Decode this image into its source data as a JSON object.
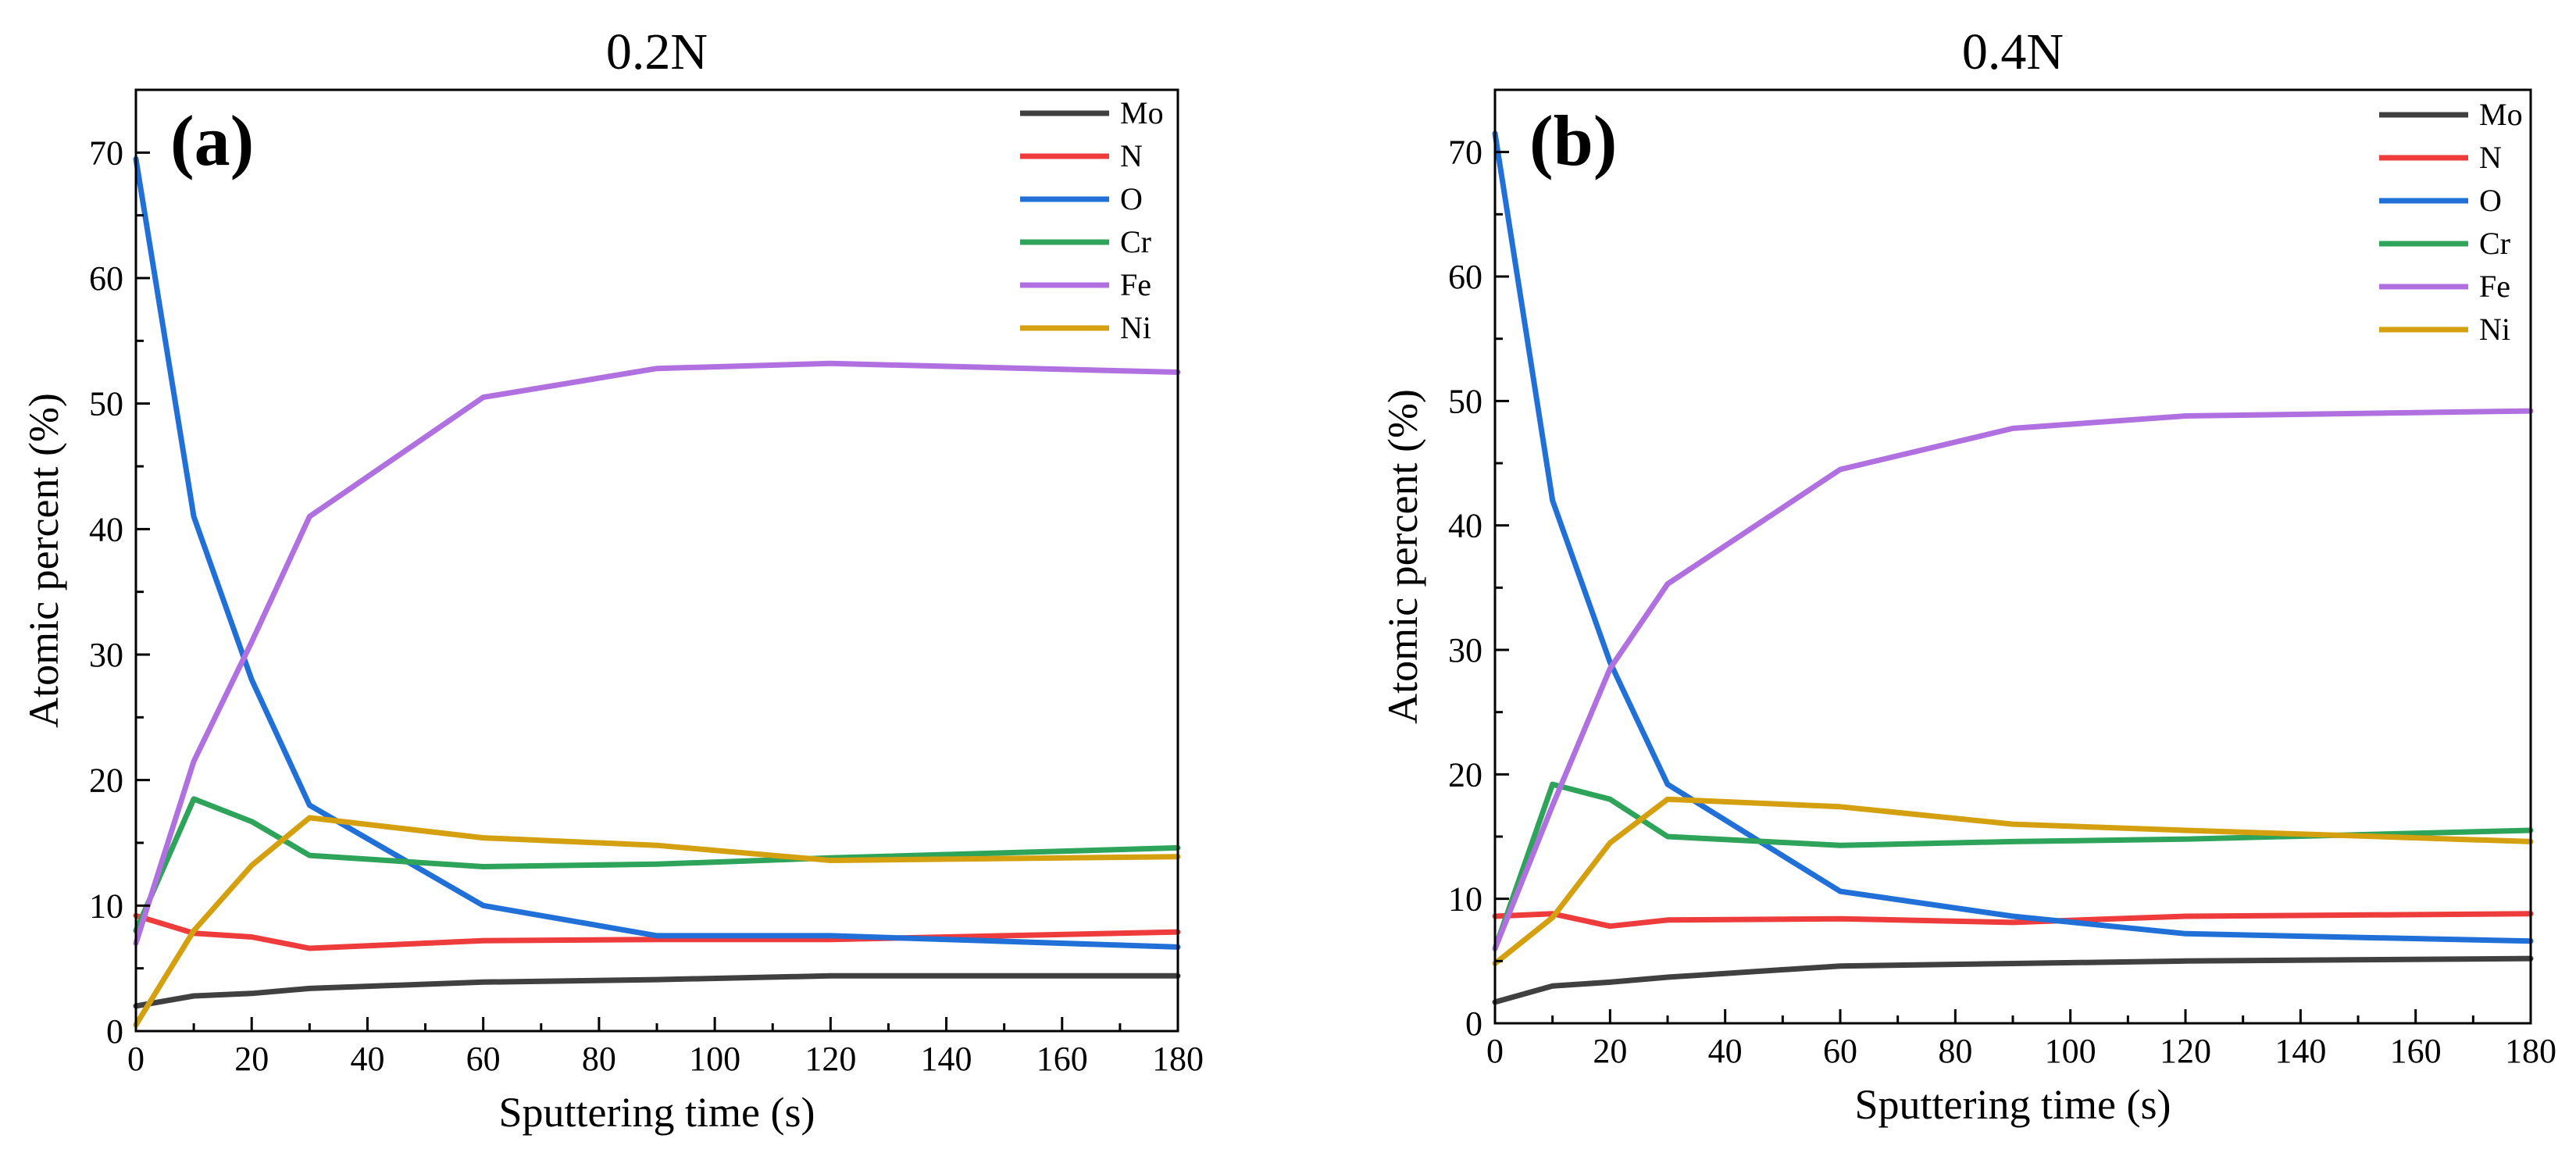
{
  "chart_data": [
    {
      "type": "line",
      "title": "0.2N",
      "panel_label": "(a)",
      "xlabel": "Sputtering time (s)",
      "ylabel": "Atomic percent (%)",
      "xlim": [
        0,
        180
      ],
      "ylim": [
        0,
        75
      ],
      "xticks": [
        0,
        20,
        40,
        60,
        80,
        100,
        120,
        140,
        160,
        180
      ],
      "yticks": [
        0,
        10,
        20,
        30,
        40,
        50,
        60,
        70
      ],
      "grid": false,
      "legend_position": "top-right",
      "x": [
        0,
        10,
        20,
        30,
        60,
        90,
        120,
        180
      ],
      "series": [
        {
          "name": "Mo",
          "color": "#404040",
          "values": [
            2.0,
            2.8,
            3.0,
            3.4,
            3.9,
            4.1,
            4.4,
            4.4
          ]
        },
        {
          "name": "N",
          "color": "#ee3b3b",
          "values": [
            9.2,
            7.8,
            7.5,
            6.6,
            7.2,
            7.3,
            7.3,
            7.9
          ]
        },
        {
          "name": "O",
          "color": "#2070d8",
          "values": [
            69.5,
            41.0,
            28.0,
            18.0,
            10.0,
            7.6,
            7.6,
            6.7
          ]
        },
        {
          "name": "Cr",
          "color": "#2ea35a",
          "values": [
            8.0,
            18.5,
            16.7,
            14.0,
            13.1,
            13.3,
            13.8,
            14.6
          ]
        },
        {
          "name": "Fe",
          "color": "#b070e0",
          "values": [
            7.0,
            21.5,
            31.0,
            41.0,
            50.5,
            52.8,
            53.2,
            52.5
          ]
        },
        {
          "name": "Ni",
          "color": "#d4a010",
          "values": [
            0.5,
            8.0,
            13.2,
            17.0,
            15.4,
            14.8,
            13.6,
            13.9
          ]
        }
      ]
    },
    {
      "type": "line",
      "title": "0.4N",
      "panel_label": "(b)",
      "xlabel": "Sputtering time (s)",
      "ylabel": "Atomic percent (%)",
      "xlim": [
        0,
        180
      ],
      "ylim": [
        0,
        75
      ],
      "xticks": [
        0,
        20,
        40,
        60,
        80,
        100,
        120,
        140,
        160,
        180
      ],
      "yticks": [
        0,
        10,
        20,
        30,
        40,
        50,
        60,
        70
      ],
      "grid": false,
      "legend_position": "top-right",
      "x": [
        0,
        10,
        20,
        30,
        60,
        90,
        120,
        180
      ],
      "series": [
        {
          "name": "Mo",
          "color": "#404040",
          "values": [
            1.7,
            3.0,
            3.3,
            3.7,
            4.6,
            4.8,
            5.0,
            5.2
          ]
        },
        {
          "name": "N",
          "color": "#ee3b3b",
          "values": [
            8.6,
            8.8,
            7.8,
            8.3,
            8.4,
            8.1,
            8.6,
            8.8
          ]
        },
        {
          "name": "O",
          "color": "#2070d8",
          "values": [
            71.5,
            42.0,
            29.0,
            19.2,
            10.6,
            8.6,
            7.2,
            6.6
          ]
        },
        {
          "name": "Cr",
          "color": "#2ea35a",
          "values": [
            6.0,
            19.2,
            18.0,
            15.0,
            14.3,
            14.6,
            14.8,
            15.5
          ]
        },
        {
          "name": "Fe",
          "color": "#b070e0",
          "values": [
            6.0,
            17.5,
            28.5,
            35.3,
            44.5,
            47.8,
            48.8,
            49.2
          ]
        },
        {
          "name": "Ni",
          "color": "#d4a010",
          "values": [
            4.8,
            8.5,
            14.5,
            18.0,
            17.4,
            16.0,
            15.5,
            14.6
          ]
        }
      ]
    }
  ]
}
